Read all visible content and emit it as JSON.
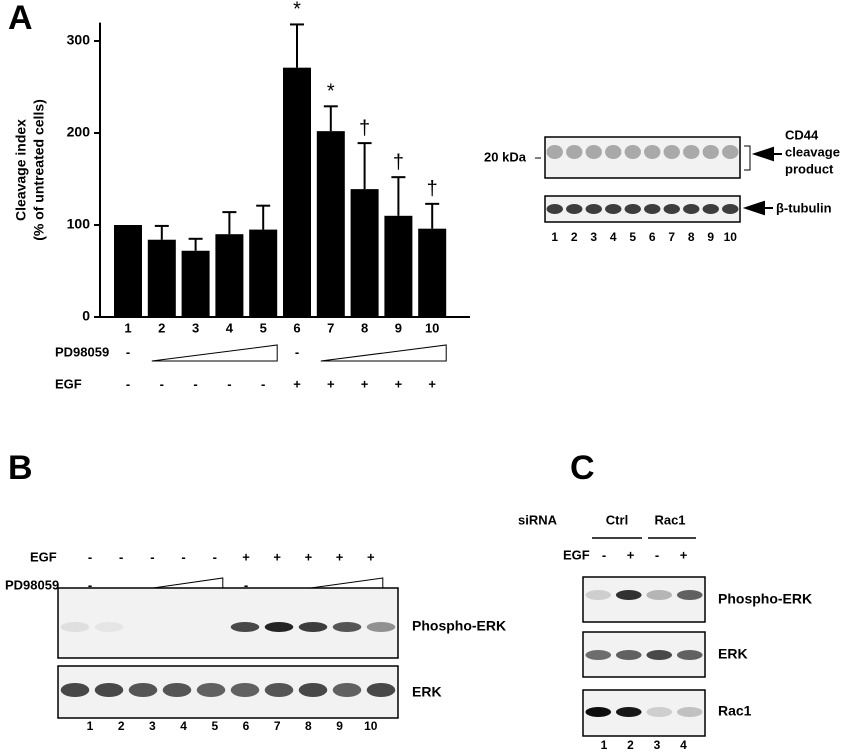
{
  "chart_data": {
    "type": "bar",
    "title": "A",
    "ylabel": [
      "Cleavage index",
      "(% of untreated cells)"
    ],
    "categories": [
      "1",
      "2",
      "3",
      "4",
      "5",
      "6",
      "7",
      "8",
      "9",
      "10"
    ],
    "values": [
      100,
      84,
      72,
      90,
      95,
      271,
      202,
      139,
      110,
      96
    ],
    "errors": [
      null,
      15,
      13,
      24,
      26,
      47,
      27,
      50,
      42,
      27
    ],
    "markers": [
      null,
      null,
      null,
      null,
      null,
      "*",
      "*",
      "†",
      "†",
      "†"
    ],
    "color": "#000000",
    "ylim": [
      0,
      320
    ],
    "yticks": [
      0,
      100,
      200,
      300
    ],
    "treatments": [
      {
        "label": "PD98059",
        "cells": [
          "-",
          null,
          null,
          null,
          null,
          "-",
          null,
          null,
          null,
          null
        ]
      },
      {
        "label": "EGF",
        "cells": [
          "-",
          "-",
          "-",
          "-",
          "-",
          "+",
          "+",
          "+",
          "+",
          "+"
        ]
      }
    ]
  },
  "blot_a": {
    "marker": "20 kDa",
    "product": [
      "CD44",
      "cleavage",
      "product"
    ],
    "loading": "β-tubulin",
    "lanes": [
      "1",
      "2",
      "3",
      "4",
      "5",
      "6",
      "7",
      "8",
      "9",
      "10"
    ]
  },
  "panel_b": {
    "label": "B",
    "rows": [
      {
        "label": "EGF",
        "cells": [
          "-",
          "-",
          "-",
          "-",
          "-",
          "+",
          "+",
          "+",
          "+",
          "+"
        ]
      },
      {
        "label": "PD98059",
        "cells": [
          "-",
          null,
          null,
          null,
          null,
          "-",
          null,
          null,
          null,
          null
        ]
      }
    ],
    "blots": [
      "Phospho-ERK",
      "ERK"
    ],
    "lanes": [
      "1",
      "2",
      "3",
      "4",
      "5",
      "6",
      "7",
      "8",
      "9",
      "10"
    ]
  },
  "panel_c": {
    "label": "C",
    "sirna_label": "siRNA",
    "groups": [
      "Ctrl",
      "Rac1"
    ],
    "egf": {
      "label": "EGF",
      "cells": [
        "-",
        "+",
        "-",
        "+"
      ]
    },
    "blots": [
      "Phospho-ERK",
      "ERK",
      "Rac1"
    ],
    "lanes": [
      "1",
      "2",
      "3",
      "4"
    ]
  }
}
